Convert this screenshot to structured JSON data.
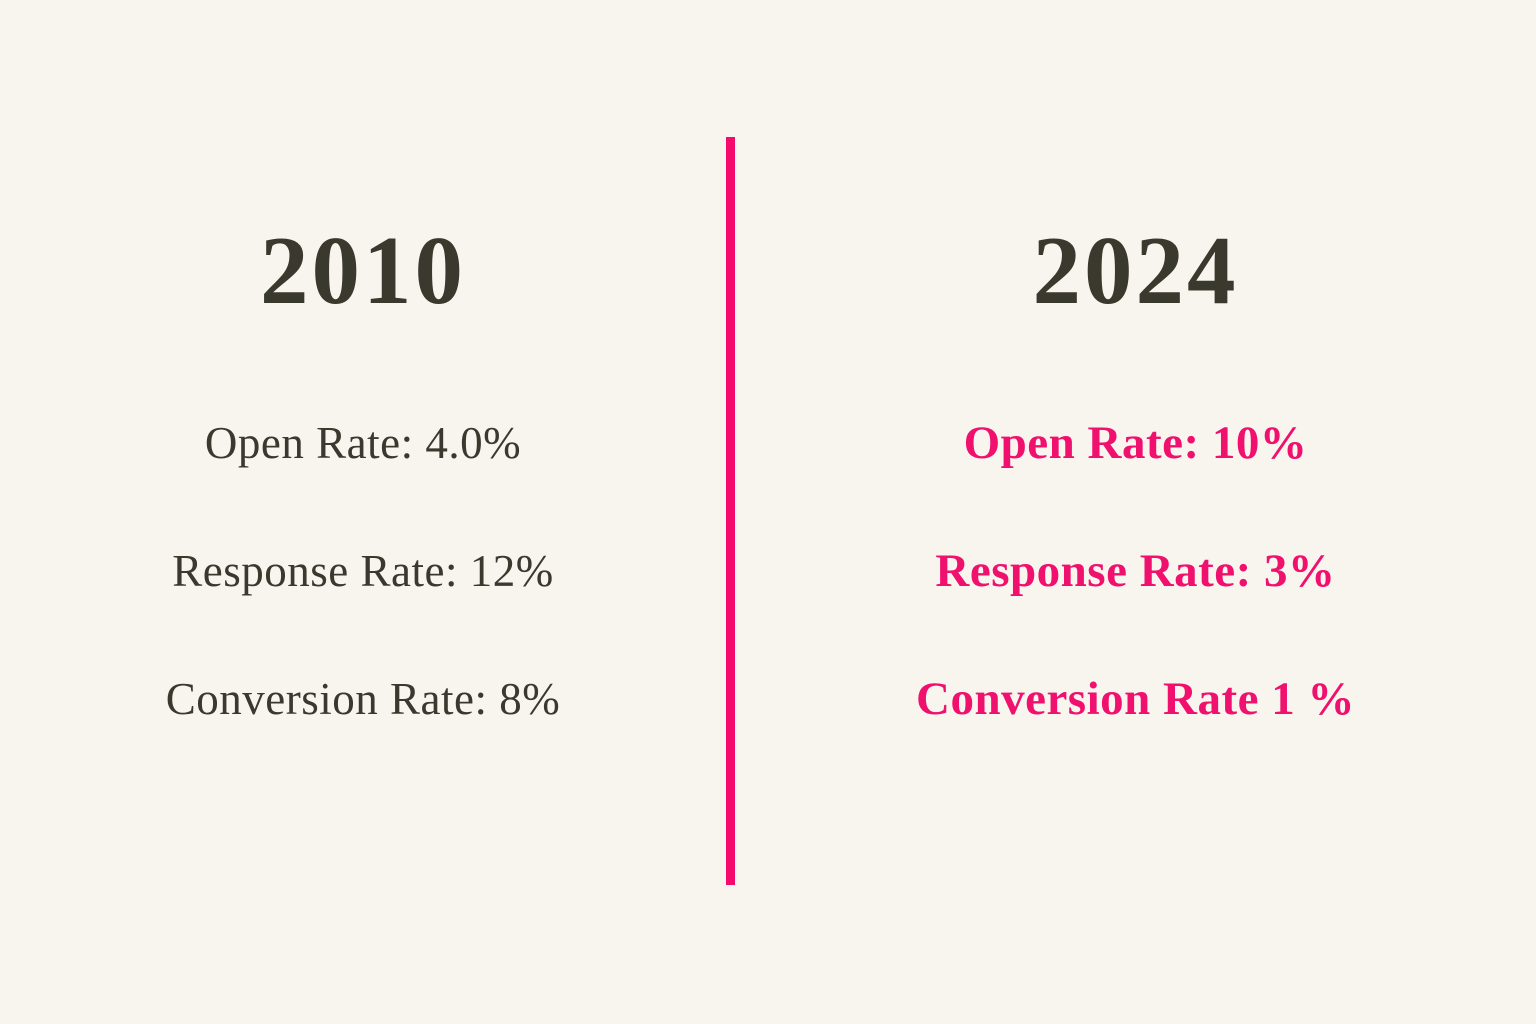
{
  "theme": {
    "background": "#F8F5EF",
    "text_dark": "#3A392D",
    "accent_pink": "#F0106E",
    "divider_pink": "#F50A6E"
  },
  "comparison": {
    "left": {
      "title": "2010",
      "stats": [
        "Open Rate: 4.0%",
        "Response Rate: 12%",
        "Conversion Rate: 8%"
      ]
    },
    "right": {
      "title": "2024",
      "stats": [
        "Open Rate: 10%",
        "Response Rate: 3%",
        "Conversion Rate 1 %"
      ]
    }
  }
}
